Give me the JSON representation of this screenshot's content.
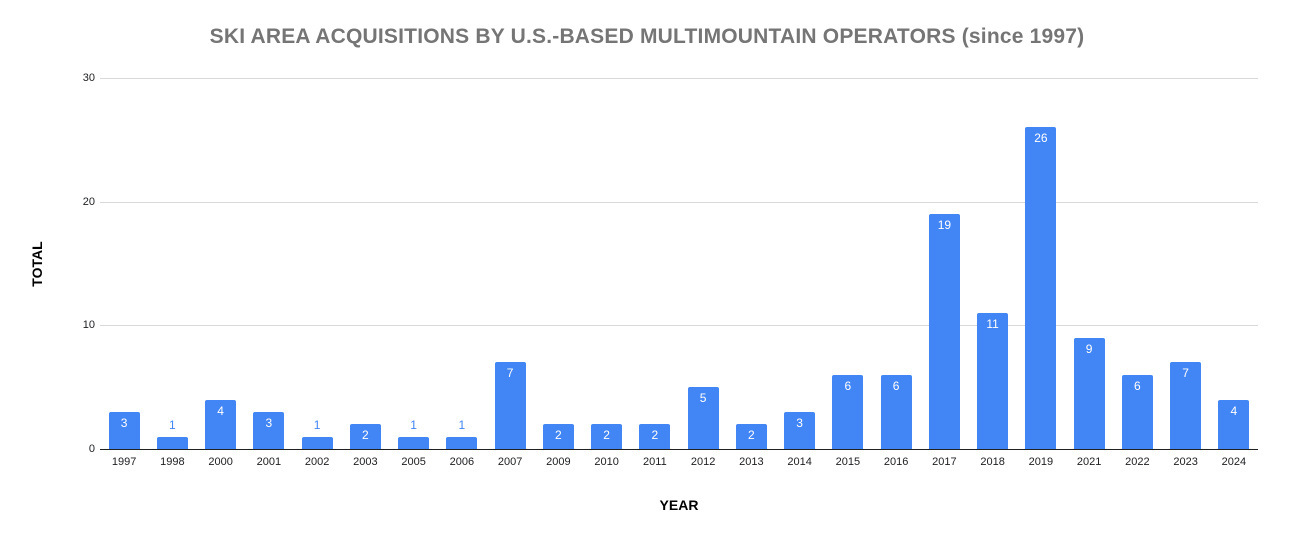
{
  "chart_data": {
    "type": "bar",
    "title": "SKI AREA ACQUISITIONS BY U.S.-BASED MULTIMOUNTAIN OPERATORS (since 1997)",
    "xlabel": "YEAR",
    "ylabel": "TOTAL",
    "categories": [
      "1997",
      "1998",
      "2000",
      "2001",
      "2002",
      "2003",
      "2005",
      "2006",
      "2007",
      "2009",
      "2010",
      "2011",
      "2012",
      "2013",
      "2014",
      "2015",
      "2016",
      "2017",
      "2018",
      "2019",
      "2021",
      "2022",
      "2023",
      "2024"
    ],
    "values": [
      3,
      1,
      4,
      3,
      1,
      2,
      1,
      1,
      7,
      2,
      2,
      2,
      5,
      2,
      3,
      6,
      6,
      19,
      11,
      26,
      9,
      6,
      7,
      4
    ],
    "ylim": [
      0,
      30
    ],
    "yticks": [
      0,
      10,
      20,
      30
    ],
    "grid": true,
    "legend": "none",
    "bar_color": "#4285f4",
    "label_inside_color": "#ffffff",
    "label_outside_color": "#4285f4",
    "title_color": "#757575"
  }
}
